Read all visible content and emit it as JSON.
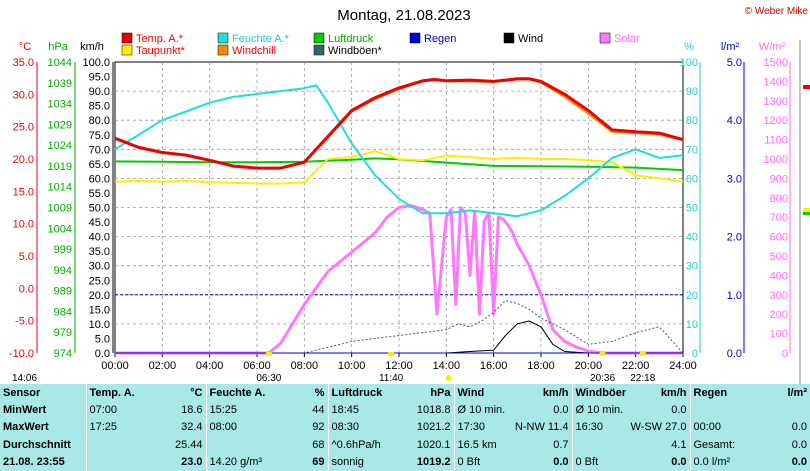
{
  "header": {
    "title": "Montag, 21.08.2023",
    "copyright": "© Weber Mike"
  },
  "legend": [
    {
      "label": "Temp. A.*",
      "color": "#ee0000",
      "text_color": "#ee0000"
    },
    {
      "label": "Feuchte A.*",
      "color": "#22dddd",
      "text_color": "#22cccc"
    },
    {
      "label": "Luftdruck",
      "color": "#00cc00",
      "text_color": "#00aa00"
    },
    {
      "label": "Regen",
      "color": "#0000dd",
      "text_color": "#0000cc"
    },
    {
      "label": "Wind",
      "color": "#000000",
      "text_color": "#000000"
    },
    {
      "label": "Solar",
      "color": "#ff77ff",
      "text_color": "#ff66ff"
    },
    {
      "label": "Taupunkt*",
      "color": "#ffee00",
      "text_color": "#ee0000"
    },
    {
      "label": "Windchill",
      "color": "#ff8800",
      "text_color": "#ee0000"
    },
    {
      "label": "Windböen*",
      "color": "#336666",
      "text_color": "#000000"
    }
  ],
  "units": {
    "temp": "°C",
    "pressure": "hPa",
    "wind": "km/h",
    "humidity": "%",
    "rain": "l/m²",
    "solar": "W/m²"
  },
  "chart_data": {
    "type": "line",
    "x_ticks": [
      "00:00",
      "02:00",
      "04:00",
      "06:00",
      "08:00",
      "10:00",
      "12:00",
      "14:00",
      "16:00",
      "18:00",
      "20:00",
      "22:00",
      "24:00"
    ],
    "axes": {
      "temp": {
        "range": [
          -10,
          35
        ],
        "ticks": [
          "35.0",
          "30.0",
          "25.0",
          "20.0",
          "15.0",
          "10.0",
          "5.0",
          "0.0",
          "-5.0",
          "-10.0"
        ]
      },
      "pressure": {
        "range": [
          974,
          1044
        ],
        "ticks": [
          "1044",
          "1039",
          "1034",
          "1029",
          "1024",
          "1019",
          "1014",
          "1009",
          "1004",
          "999",
          "994",
          "989",
          "984",
          "979",
          "974"
        ]
      },
      "wind": {
        "range": [
          0,
          100
        ],
        "ticks": [
          "100.0",
          "95.0",
          "90.0",
          "85.0",
          "80.0",
          "75.0",
          "70.0",
          "65.0",
          "60.0",
          "55.0",
          "50.0",
          "45.0",
          "40.0",
          "35.0",
          "30.0",
          "25.0",
          "20.0",
          "15.0",
          "10.0",
          "5.0",
          "0.0"
        ]
      },
      "humidity": {
        "range": [
          0,
          100
        ],
        "ticks": [
          "100",
          "90",
          "80",
          "70",
          "60",
          "50",
          "40",
          "30",
          "20",
          "10",
          "0"
        ]
      },
      "rain": {
        "range": [
          0,
          5
        ],
        "ticks": [
          "5.0",
          "4.0",
          "3.0",
          "2.0",
          "1.0",
          "0.0"
        ]
      },
      "solar": {
        "range": [
          0,
          1500
        ],
        "ticks": [
          "1500",
          "1400",
          "1300",
          "1200",
          "1100",
          "1000",
          "900",
          "800",
          "700",
          "600",
          "500",
          "400",
          "300",
          "200",
          "100",
          "0"
        ]
      }
    },
    "series": [
      {
        "name": "Temp. A.*",
        "axis": "temp",
        "x": [
          0,
          1,
          2,
          3,
          4,
          5,
          6,
          7,
          8,
          9,
          10,
          11,
          12,
          13,
          13.5,
          14,
          15,
          16,
          17,
          17.5,
          18,
          19,
          20,
          21,
          22,
          23,
          24
        ],
        "y": [
          23.2,
          21.8,
          21.0,
          20.6,
          19.8,
          18.9,
          18.6,
          18.6,
          19.5,
          23.5,
          27.5,
          29.5,
          31.0,
          32.1,
          32.3,
          32.1,
          32.2,
          32.0,
          32.4,
          32.4,
          32.0,
          30.0,
          27.5,
          24.5,
          24.2,
          24.0,
          23.0
        ]
      },
      {
        "name": "Windchill",
        "axis": "temp",
        "x": [
          0,
          1,
          2,
          3,
          4,
          5,
          6,
          7,
          8,
          9,
          10,
          11,
          12,
          13,
          13.5,
          14,
          15,
          16,
          17,
          17.5,
          18,
          19,
          20,
          21,
          22,
          23,
          24
        ],
        "y": [
          23.2,
          21.8,
          21.0,
          20.6,
          19.8,
          18.9,
          18.6,
          18.6,
          19.5,
          23.3,
          27.3,
          29.3,
          30.8,
          32.0,
          32.2,
          32.0,
          32.0,
          31.9,
          32.3,
          32.3,
          31.8,
          29.6,
          27.0,
          24.2,
          24.0,
          23.8,
          22.9
        ]
      },
      {
        "name": "Taupunkt*",
        "axis": "temp",
        "x": [
          0,
          1,
          2,
          3,
          4,
          5,
          6,
          7,
          8,
          9,
          10,
          11,
          12,
          13,
          14,
          15,
          16,
          17,
          18,
          19,
          20,
          21,
          22,
          23,
          24
        ],
        "y": [
          16.5,
          16.6,
          16.5,
          16.6,
          16.4,
          16.3,
          16.2,
          16.2,
          16.4,
          20.0,
          20.3,
          21.2,
          20.0,
          19.8,
          20.5,
          20.3,
          20.0,
          20.2,
          20.0,
          20.0,
          19.8,
          19.5,
          17.5,
          17.0,
          16.5
        ]
      },
      {
        "name": "Feuchte A.*",
        "axis": "humidity",
        "x": [
          0,
          1,
          2,
          3,
          4,
          5,
          6,
          7,
          8,
          8.5,
          9,
          10,
          11,
          12,
          13,
          14,
          15,
          16,
          17,
          18,
          19,
          20,
          21,
          22,
          23,
          24
        ],
        "y": [
          70,
          75,
          80,
          83,
          86,
          88,
          89,
          90,
          91,
          92,
          86,
          72,
          61,
          53,
          48,
          48,
          49,
          48,
          47,
          49,
          54,
          60,
          67,
          70,
          67,
          68
        ]
      },
      {
        "name": "Luftdruck",
        "axis": "pressure",
        "x": [
          0,
          2,
          4,
          6,
          8,
          10,
          11,
          12,
          14,
          16,
          18,
          20,
          22,
          24
        ],
        "y": [
          1020.1,
          1020.0,
          1019.9,
          1019.9,
          1020.0,
          1020.5,
          1020.8,
          1020.6,
          1019.8,
          1019.0,
          1018.9,
          1018.8,
          1018.6,
          1018.0
        ]
      },
      {
        "name": "Solar",
        "axis": "solar",
        "x": [
          0,
          6.5,
          7.0,
          8.0,
          9.0,
          10.0,
          11.0,
          11.5,
          12.0,
          12.5,
          13.0,
          13.3,
          13.6,
          14.0,
          14.2,
          14.4,
          14.6,
          14.8,
          15.0,
          15.2,
          15.4,
          15.6,
          15.8,
          16.0,
          16.2,
          16.4,
          16.6,
          16.8,
          17.0,
          17.5,
          18.0,
          18.5,
          19.0,
          19.5,
          20.0,
          20.6,
          24
        ],
        "y": [
          0,
          0,
          50,
          250,
          420,
          520,
          620,
          700,
          750,
          760,
          740,
          720,
          200,
          700,
          740,
          250,
          750,
          720,
          400,
          730,
          200,
          680,
          720,
          200,
          700,
          690,
          660,
          620,
          560,
          450,
          300,
          120,
          60,
          30,
          10,
          0,
          0
        ]
      },
      {
        "name": "Windböen*",
        "axis": "wind",
        "x": [
          0,
          1,
          2,
          3,
          4,
          5,
          6,
          7,
          8,
          9,
          10,
          11,
          12,
          13,
          14,
          14.5,
          15,
          15.5,
          16,
          16.5,
          17,
          17.5,
          18,
          19,
          20,
          21,
          22,
          23,
          24
        ],
        "y": [
          0,
          0,
          0,
          0,
          0,
          0,
          0,
          0,
          0,
          2,
          4,
          5,
          6,
          7,
          8,
          10,
          9,
          11,
          14,
          18,
          17,
          15,
          12,
          8,
          3,
          4,
          7,
          9,
          0
        ]
      },
      {
        "name": "Wind",
        "axis": "wind",
        "x": [
          0,
          10,
          12,
          14,
          15,
          16,
          16.5,
          17,
          17.5,
          18,
          18.5,
          19,
          20,
          24
        ],
        "y": [
          0,
          0,
          0,
          0,
          0.5,
          1,
          6,
          10,
          11,
          9,
          3,
          0.5,
          0,
          0
        ]
      },
      {
        "name": "Regen",
        "axis": "rain",
        "x": [
          0,
          24
        ],
        "y": [
          0,
          0
        ]
      }
    ],
    "bottom_markers": [
      {
        "label": "14:06",
        "row": 1
      },
      {
        "label": "06:30",
        "row": 2
      },
      {
        "label": "11:40",
        "row": 2
      },
      {
        "label": "20:36",
        "row": 2
      },
      {
        "label": "22:18",
        "row": 2
      }
    ],
    "rain_line_level": 1.0,
    "grid": true
  },
  "table": {
    "headers": [
      "Sensor",
      "Temp. A.",
      "°C",
      "Feuchte A.",
      "%",
      "Luftdruck",
      "hPa",
      "Wind",
      "km/h",
      "Windböen",
      "km/h",
      "Regen",
      "l/m²"
    ],
    "rows": [
      [
        "MinWert",
        "07:00",
        "18.6",
        "15:25",
        "44",
        "18:45",
        "1018.8",
        "Ø 10 min.",
        "0.0",
        "Ø 10 min.",
        "0.0",
        "",
        ""
      ],
      [
        "MaxWert",
        "17:25",
        "32.4",
        "08:00",
        "92",
        "08:30",
        "1021.2",
        "17:30",
        "N-NW 11.4",
        "16:30",
        "W-SW 27.0",
        "00:00",
        "0.0"
      ],
      [
        "Durchschnitt",
        "",
        "25.44",
        "",
        "68",
        "^0.6hPa/h",
        "1020.1",
        "16.5 km",
        "0.7",
        "",
        "4.1",
        "Gesamt:",
        "0.0"
      ],
      [
        "21.08. 23:55",
        "",
        "23.0",
        "14.20 g/m³",
        "69",
        "sonnig",
        "1019.2",
        "0 Bft",
        "0.0",
        "0 Bft",
        "0.0",
        "0.0 l/m²",
        "0.0"
      ]
    ]
  }
}
